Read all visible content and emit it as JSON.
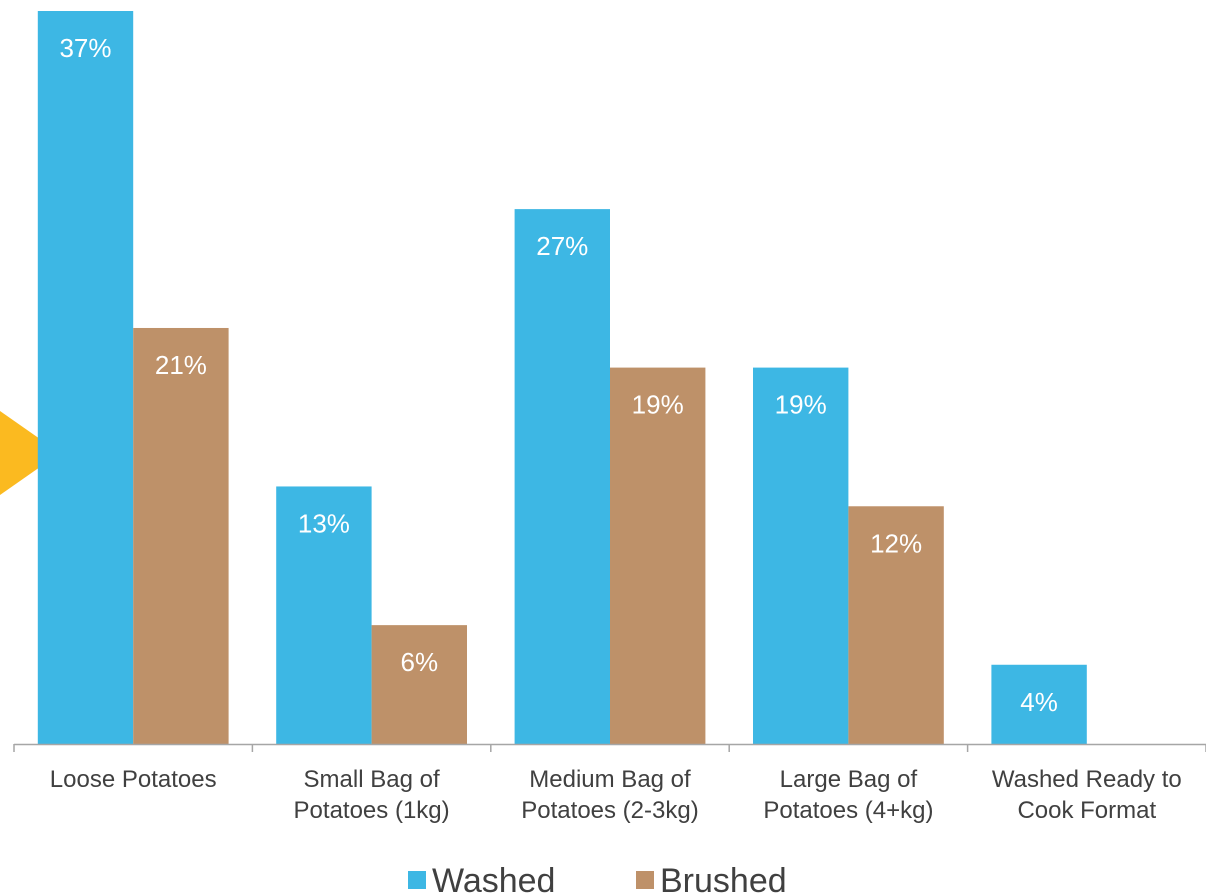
{
  "chart_data": {
    "type": "bar",
    "categories": [
      [
        "Loose Potatoes"
      ],
      [
        "Small Bag of",
        "Potatoes (1kg)"
      ],
      [
        "Medium Bag of",
        "Potatoes (2-3kg)"
      ],
      [
        "Large Bag of",
        "Potatoes (4+kg)"
      ],
      [
        "Washed Ready to",
        "Cook Format"
      ]
    ],
    "series": [
      {
        "name": "Washed",
        "color": "#3DB7E4",
        "values": [
          37,
          13,
          27,
          19,
          4
        ],
        "labels": [
          "37%",
          "13%",
          "27%",
          "19%",
          "4%"
        ]
      },
      {
        "name": "Brushed",
        "color": "#BE9169",
        "values": [
          21,
          6,
          19,
          12,
          null
        ],
        "labels": [
          "21%",
          "6%",
          "19%",
          "12%",
          ""
        ]
      }
    ],
    "ylim": [
      0,
      37
    ],
    "grid": false,
    "legend_position": "bottom",
    "axis_color": "#A6A6A6",
    "pointer_color": "#FBBA20"
  }
}
